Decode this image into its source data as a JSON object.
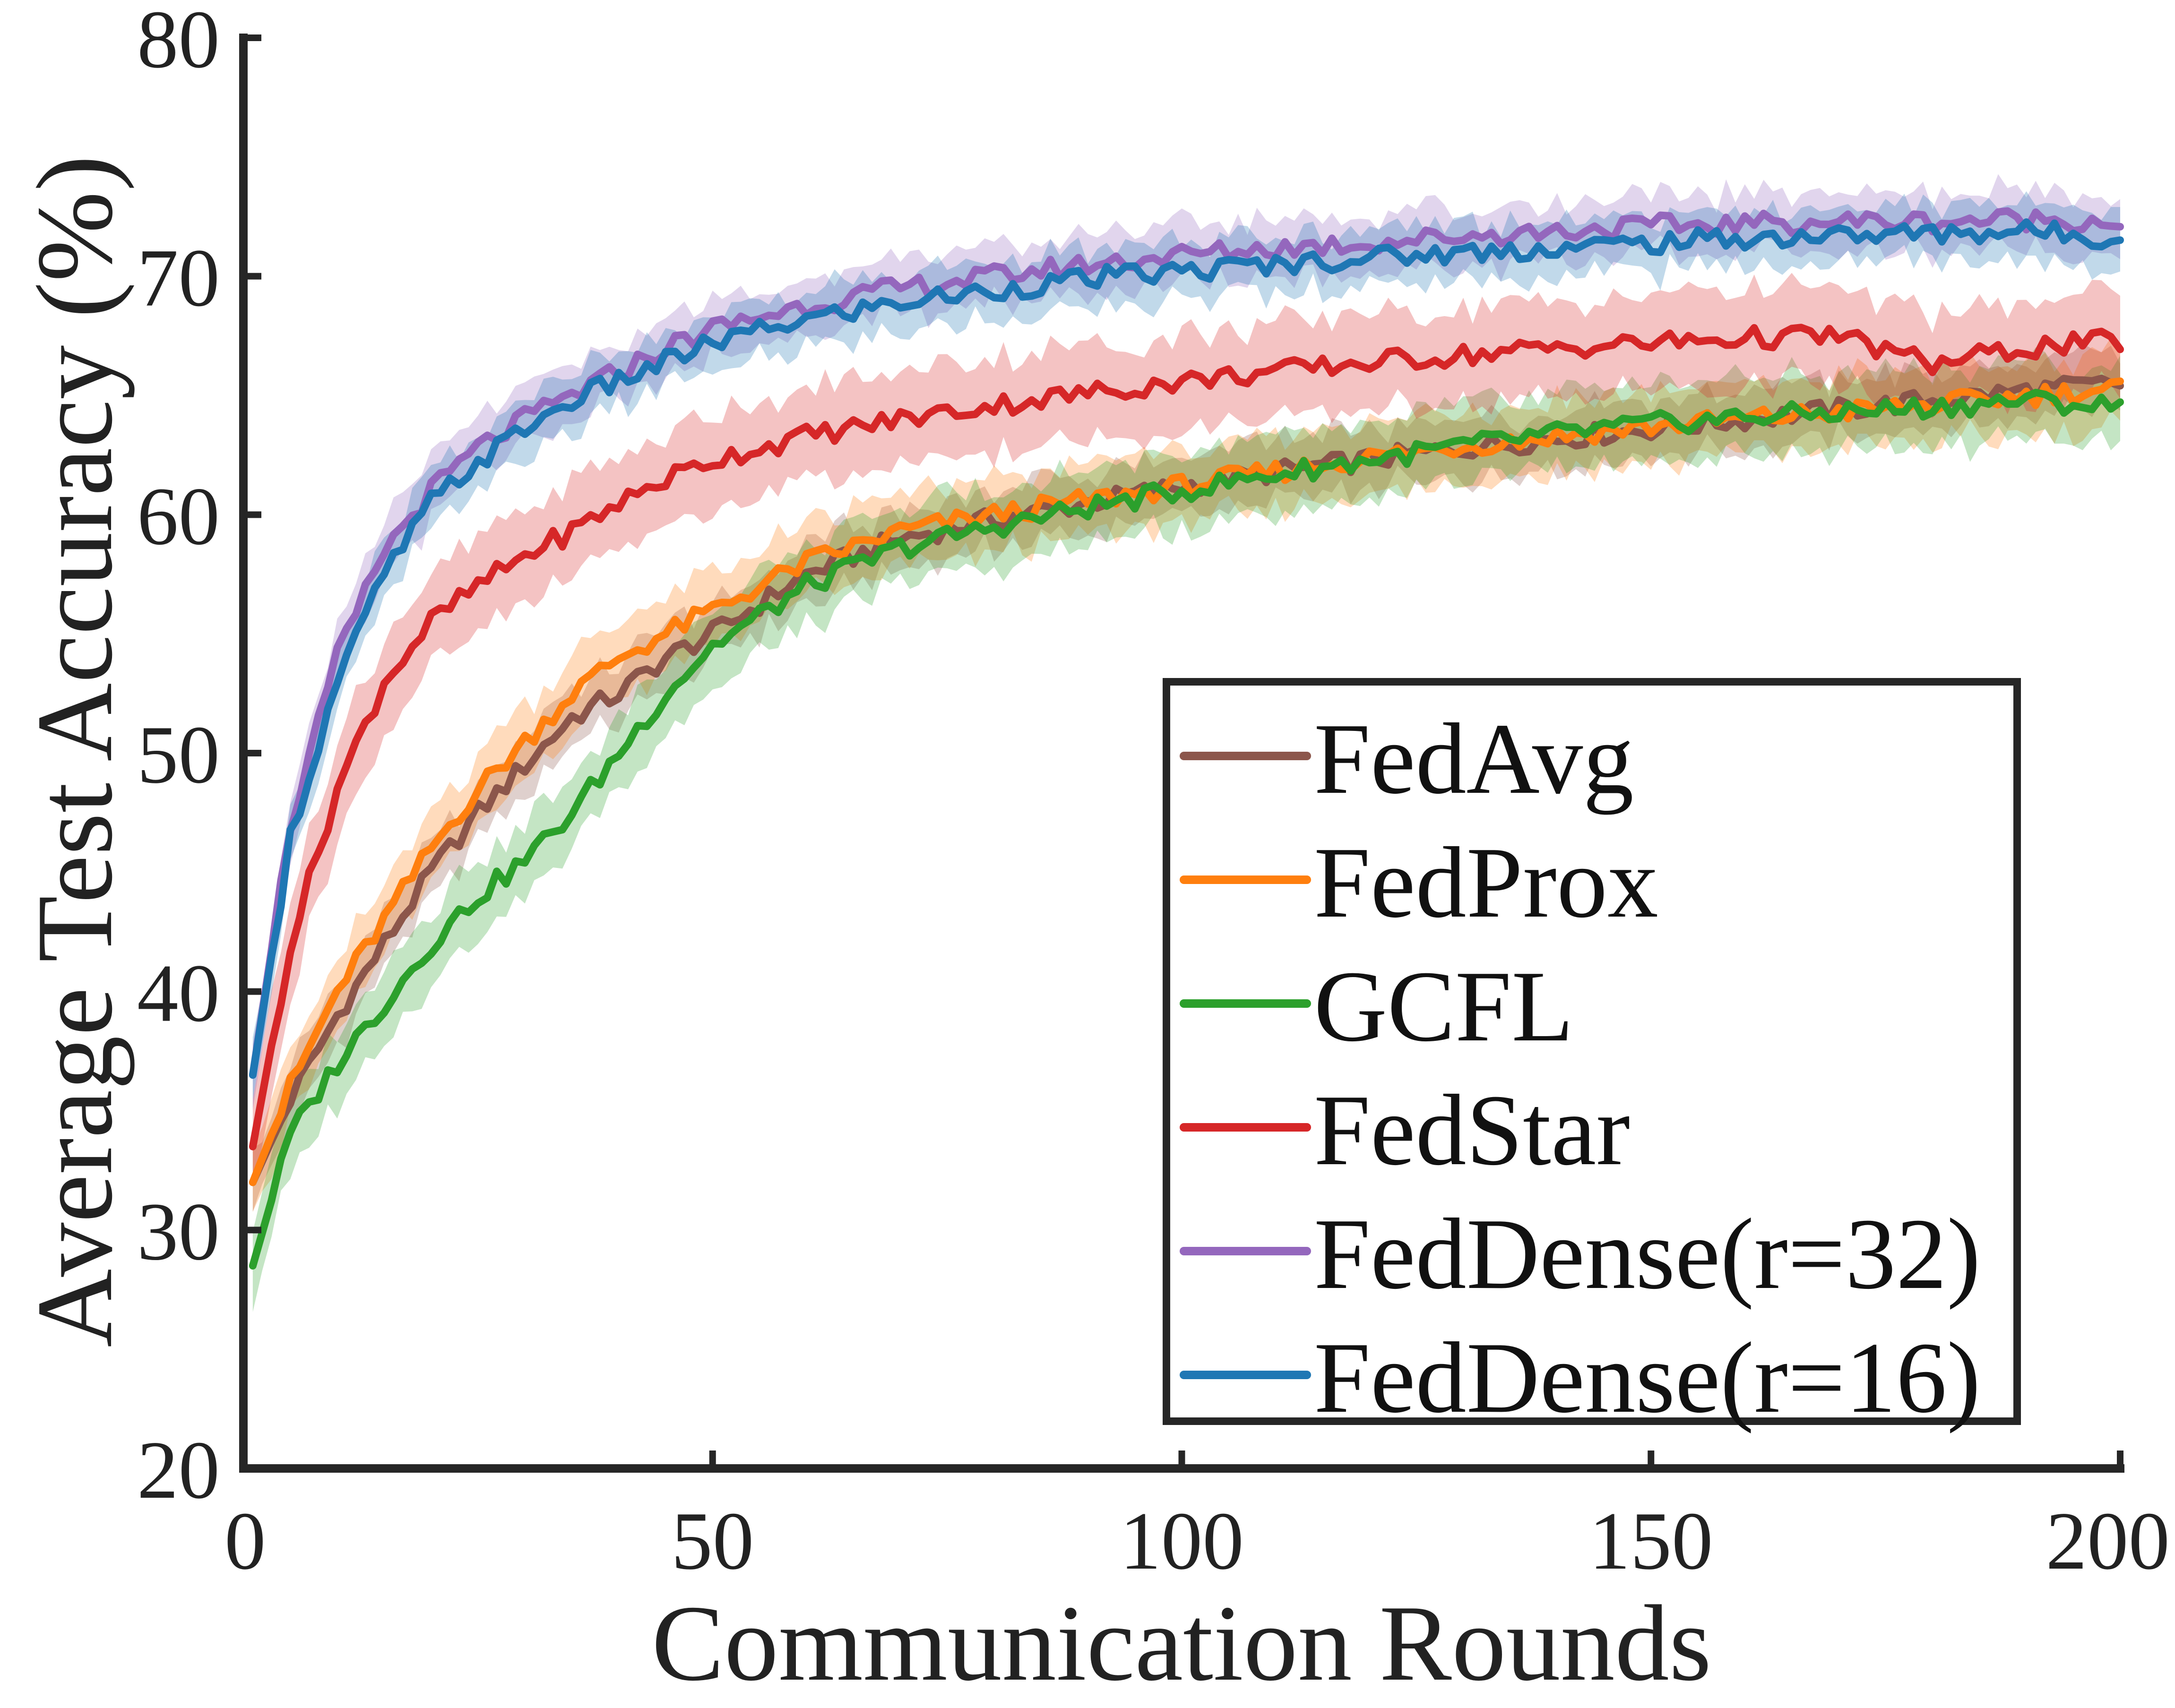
{
  "chart_data": {
    "type": "line",
    "title": "",
    "xlabel": "Communication Rounds",
    "ylabel": "Average Test Accuracy (%)",
    "xlim": [
      0,
      200
    ],
    "ylim": [
      20,
      80
    ],
    "xticks": [
      0,
      50,
      100,
      150,
      200
    ],
    "yticks": [
      20,
      30,
      40,
      50,
      60,
      70,
      80
    ],
    "xtick_labels": [
      "0",
      "50",
      "100",
      "150",
      "200"
    ],
    "ytick_labels": [
      "20",
      "30",
      "40",
      "50",
      "60",
      "70",
      "80"
    ],
    "legend_position": "lower-right",
    "grid": false,
    "x": [
      1,
      5,
      10,
      15,
      20,
      25,
      30,
      35,
      40,
      45,
      50,
      60,
      70,
      80,
      90,
      100,
      110,
      120,
      130,
      140,
      150,
      160,
      170,
      180,
      190,
      200
    ],
    "series": [
      {
        "name": "FedAvg",
        "color": "#8c564b",
        "values": [
          32,
          35.5,
          39,
          42,
          45,
          47.5,
          49.5,
          51.5,
          52.5,
          54,
          55,
          57.5,
          59,
          59.8,
          60.5,
          61.2,
          61.8,
          62.3,
          62.8,
          63.2,
          63.6,
          64,
          64.4,
          64.8,
          65.2,
          65.5
        ],
        "band": 1.2
      },
      {
        "name": "FedProx",
        "color": "#ff7f0e",
        "values": [
          32,
          36,
          40,
          43,
          46,
          48.5,
          50.5,
          52.5,
          54,
          55,
          56,
          58,
          59.3,
          60,
          60.6,
          61.2,
          61.8,
          62.4,
          62.9,
          63.3,
          63.7,
          64,
          64.3,
          64.6,
          65,
          65.3
        ],
        "band": 1.5
      },
      {
        "name": "GCFL",
        "color": "#2ca02c",
        "values": [
          28.5,
          34,
          37,
          39.5,
          42,
          44,
          45.5,
          47.5,
          50,
          52.5,
          54.5,
          57,
          58.6,
          59.5,
          60.3,
          61,
          61.7,
          62.3,
          62.9,
          63.4,
          63.8,
          64.1,
          64.3,
          64.5,
          64.8,
          64.5
        ],
        "band": 1.6
      },
      {
        "name": "FedStar",
        "color": "#d62728",
        "values": [
          33.5,
          42,
          48.5,
          53,
          55.5,
          57,
          58.3,
          59.3,
          60.5,
          61.5,
          62.3,
          63.3,
          64,
          64.6,
          65.1,
          65.6,
          66,
          66.4,
          66.7,
          67,
          67.2,
          67.4,
          67.5,
          66.3,
          67,
          67.3
        ],
        "band": 2.0
      },
      {
        "name": "FedDense(r=32)",
        "color": "#9467bd",
        "values": [
          36.5,
          47,
          54,
          58.5,
          61,
          62.8,
          64,
          65,
          66,
          67,
          67.8,
          68.8,
          69.5,
          70,
          70.5,
          70.9,
          71.2,
          71.4,
          71.7,
          71.9,
          72.1,
          72.2,
          72.3,
          72.3,
          72.4,
          72.3
        ],
        "band": 1.2
      },
      {
        "name": "FedDense(r=16)",
        "color": "#1f77b4",
        "values": [
          36.5,
          46.5,
          53,
          57.5,
          60.5,
          62.2,
          63.6,
          64.8,
          65.6,
          66.4,
          67.2,
          68.2,
          68.9,
          69.4,
          69.9,
          70.2,
          70.5,
          70.8,
          71,
          71.2,
          71.4,
          71.6,
          71.7,
          71.8,
          71.9,
          71.6
        ],
        "band": 1.2
      }
    ]
  }
}
